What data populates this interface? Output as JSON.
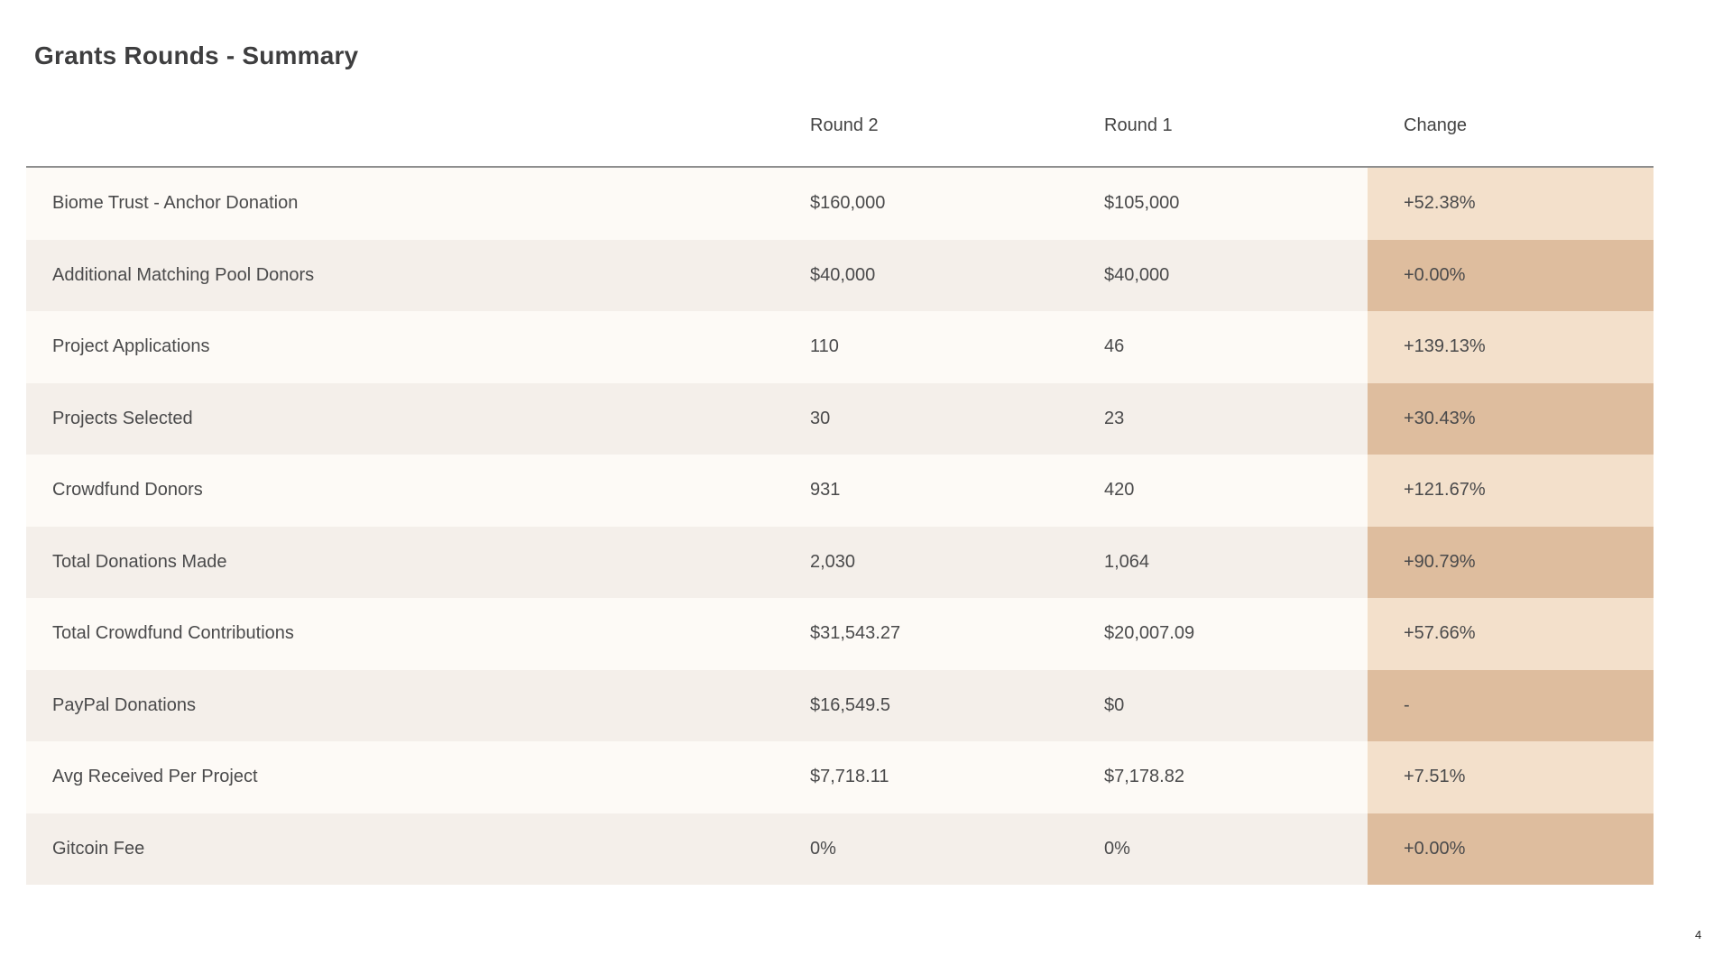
{
  "page": {
    "title": "Grants Rounds - Summary",
    "page_number": "4"
  },
  "table": {
    "columns": [
      "",
      "Round 2",
      "Round 1",
      "Change"
    ],
    "rows": [
      {
        "label": "Biome Trust - Anchor Donation",
        "round2": "$160,000",
        "round1": "$105,000",
        "change": "+52.38%"
      },
      {
        "label": "Additional Matching Pool Donors",
        "round2": "$40,000",
        "round1": "$40,000",
        "change": "+0.00%"
      },
      {
        "label": "Project Applications",
        "round2": "110",
        "round1": "46",
        "change": "+139.13%"
      },
      {
        "label": "Projects Selected",
        "round2": "30",
        "round1": "23",
        "change": "+30.43%"
      },
      {
        "label": "Crowdfund Donors",
        "round2": "931",
        "round1": "420",
        "change": "+121.67%"
      },
      {
        "label": "Total Donations Made",
        "round2": "2,030",
        "round1": "1,064",
        "change": "+90.79%"
      },
      {
        "label": "Total Crowdfund Contributions",
        "round2": "$31,543.27",
        "round1": "$20,007.09",
        "change": "+57.66%"
      },
      {
        "label": "PayPal Donations",
        "round2": "$16,549.5",
        "round1": "$0",
        "change": "-"
      },
      {
        "label": "Avg Received Per Project",
        "round2": "$7,718.11",
        "round1": "$7,178.82",
        "change": "+7.51%"
      },
      {
        "label": "Gitcoin Fee",
        "round2": "0%",
        "round1": "0%",
        "change": "+0.00%"
      }
    ]
  },
  "colors": {
    "row_odd": "#fdfaf6",
    "row_even": "#f4efea",
    "change_odd": "#f3e0cb",
    "change_even": "#debd9e",
    "divider": "#8e8e8e",
    "text": "#4a4a4b"
  }
}
